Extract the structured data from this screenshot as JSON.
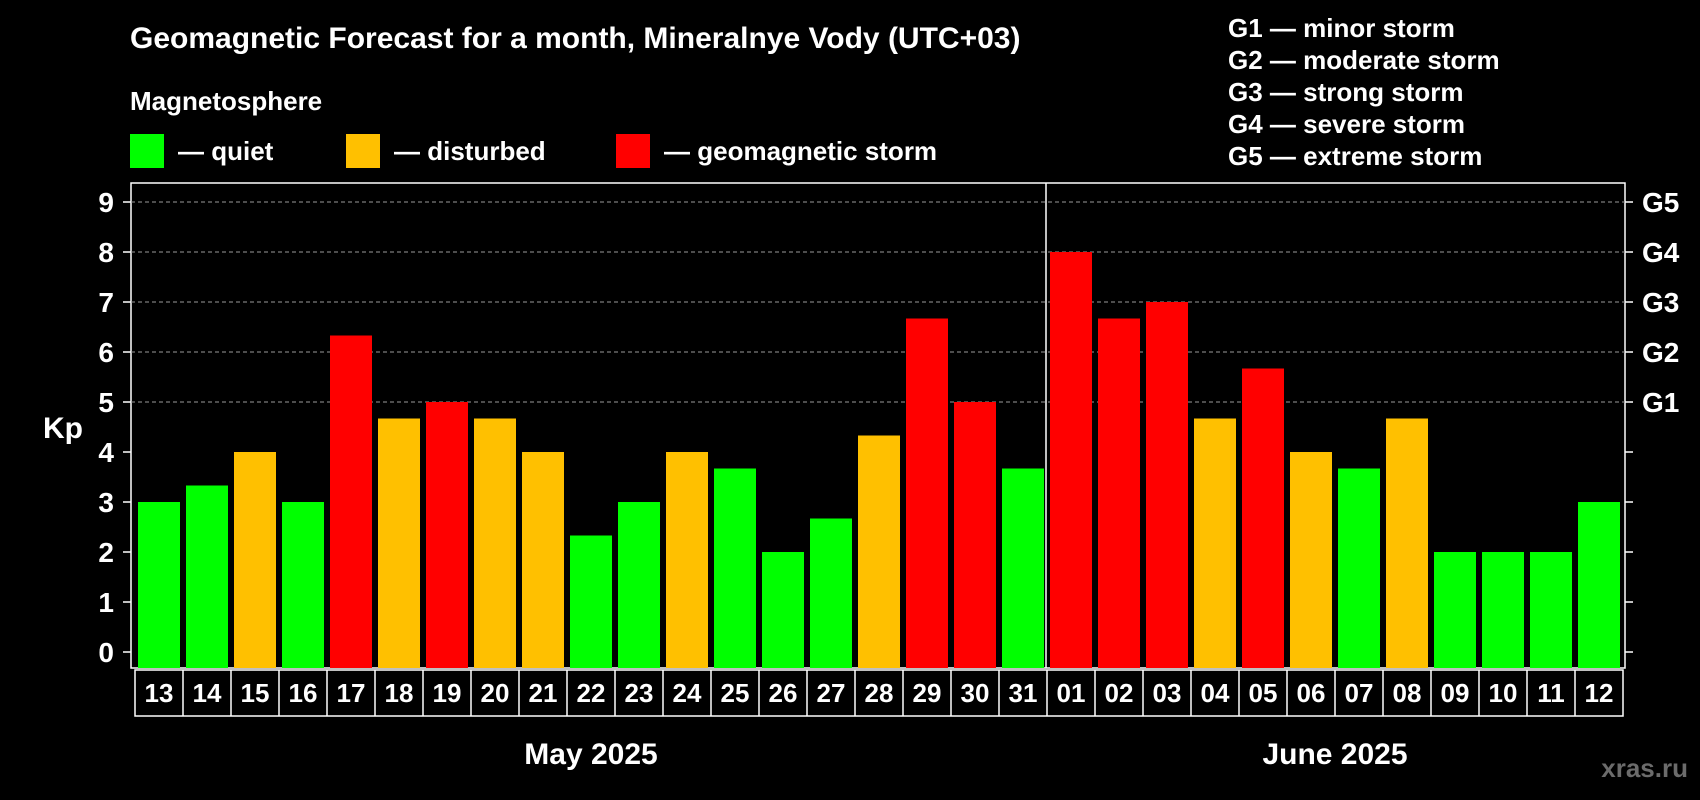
{
  "title": "Geomagnetic Forecast for a month, Mineralnye Vody (UTC+03)",
  "subtitle": "Magnetosphere",
  "legend": [
    {
      "label": "— quiet",
      "color": "#00ff00"
    },
    {
      "label": "— disturbed",
      "color": "#ffc000"
    },
    {
      "label": "— geomagnetic storm",
      "color": "#ff0000"
    }
  ],
  "g_legend": [
    "G1 — minor storm",
    "G2 — moderate storm",
    "G3 — strong storm",
    "G4 — severe storm",
    "G5 — extreme storm"
  ],
  "watermark": "xras.ru",
  "chart_data": {
    "type": "bar",
    "ylabel": "Kp",
    "ylim": [
      0,
      9
    ],
    "yticks": [
      "0",
      "1",
      "2",
      "3",
      "4",
      "5",
      "6",
      "7",
      "8",
      "9"
    ],
    "g_levels": [
      {
        "label": "G1",
        "value": 5
      },
      {
        "label": "G2",
        "value": 6
      },
      {
        "label": "G3",
        "value": 7
      },
      {
        "label": "G4",
        "value": 8
      },
      {
        "label": "G5",
        "value": 9
      }
    ],
    "grid": "dashed horizontal lines at Kp 5-9",
    "categories": [
      "13",
      "14",
      "15",
      "16",
      "17",
      "18",
      "19",
      "20",
      "21",
      "22",
      "23",
      "24",
      "25",
      "26",
      "27",
      "28",
      "29",
      "30",
      "31",
      "01",
      "02",
      "03",
      "04",
      "05",
      "06",
      "07",
      "08",
      "09",
      "10",
      "11",
      "12"
    ],
    "values": [
      3,
      3.33,
      4,
      3,
      6.33,
      4.67,
      5,
      4.67,
      4,
      2.33,
      3,
      4,
      3.67,
      2,
      2.67,
      4.33,
      6.67,
      5,
      3.67,
      8,
      6.67,
      7,
      4.67,
      5.67,
      4,
      3.67,
      4.67,
      2,
      2,
      2,
      3
    ],
    "status": [
      "quiet",
      "quiet",
      "disturbed",
      "quiet",
      "storm",
      "disturbed",
      "storm",
      "disturbed",
      "disturbed",
      "quiet",
      "quiet",
      "disturbed",
      "quiet",
      "quiet",
      "quiet",
      "disturbed",
      "storm",
      "storm",
      "quiet",
      "storm",
      "storm",
      "storm",
      "disturbed",
      "storm",
      "disturbed",
      "quiet",
      "disturbed",
      "quiet",
      "quiet",
      "quiet",
      "quiet"
    ],
    "colors": {
      "quiet": "#00ff00",
      "disturbed": "#ffc000",
      "storm": "#ff0000"
    },
    "month_groups": [
      {
        "label": "May 2025",
        "count": 19
      },
      {
        "label": "June 2025",
        "count": 12
      }
    ]
  }
}
